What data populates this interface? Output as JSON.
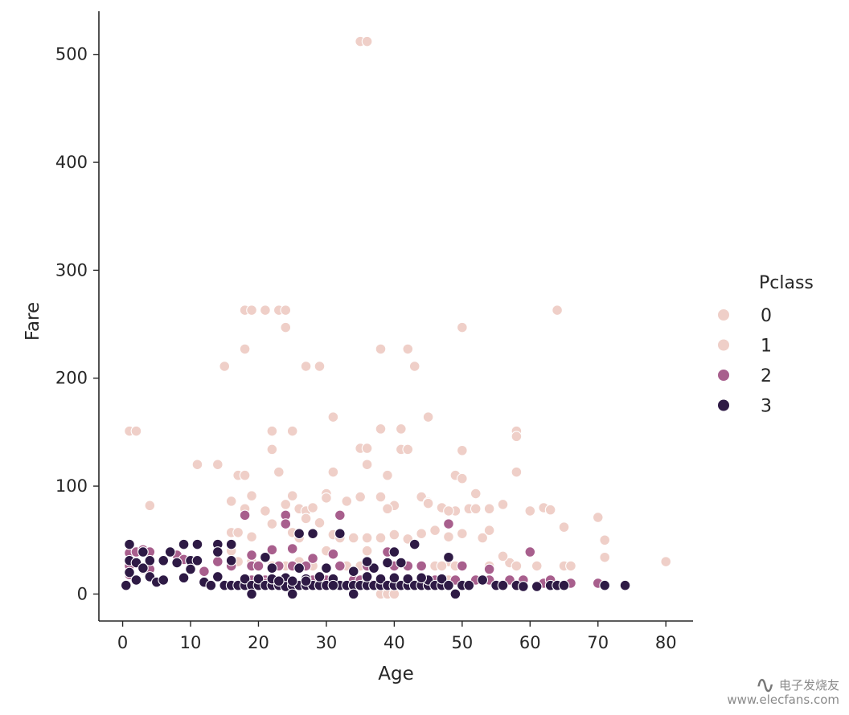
{
  "chart_data": {
    "type": "scatter",
    "xlabel": "Age",
    "ylabel": "Fare",
    "xlim": [
      -3.5,
      84
    ],
    "ylim": [
      -25,
      540
    ],
    "xticks": [
      0,
      10,
      20,
      30,
      40,
      50,
      60,
      70,
      80
    ],
    "yticks": [
      0,
      100,
      200,
      300,
      400,
      500
    ],
    "legend": {
      "title": "Pclass",
      "placement": "right",
      "entries": [
        {
          "label": "0",
          "color": "#efcfc8"
        },
        {
          "label": "1",
          "color": "#efcfc8"
        },
        {
          "label": "2",
          "color": "#a85f8d"
        },
        {
          "label": "3",
          "color": "#2e1a45"
        }
      ]
    },
    "series": [
      {
        "name": "1",
        "color": "#efcfc8",
        "points": [
          [
            35,
            512
          ],
          [
            36,
            512
          ],
          [
            18,
            263
          ],
          [
            19,
            263
          ],
          [
            21,
            263
          ],
          [
            23,
            263
          ],
          [
            24,
            263
          ],
          [
            64,
            263
          ],
          [
            24,
            247
          ],
          [
            50,
            247
          ],
          [
            18,
            227
          ],
          [
            38,
            227
          ],
          [
            42,
            227
          ],
          [
            15,
            211
          ],
          [
            27,
            211
          ],
          [
            29,
            211
          ],
          [
            43,
            211
          ],
          [
            31,
            164
          ],
          [
            45,
            164
          ],
          [
            1,
            151
          ],
          [
            2,
            151
          ],
          [
            22,
            151
          ],
          [
            25,
            151
          ],
          [
            58,
            151
          ],
          [
            38,
            153
          ],
          [
            41,
            153
          ],
          [
            58,
            146
          ],
          [
            35,
            135
          ],
          [
            36,
            135
          ],
          [
            41,
            134
          ],
          [
            42,
            134
          ],
          [
            50,
            133
          ],
          [
            22,
            134
          ],
          [
            36,
            120
          ],
          [
            11,
            120
          ],
          [
            14,
            120
          ],
          [
            17,
            110
          ],
          [
            18,
            110
          ],
          [
            23,
            113
          ],
          [
            31,
            113
          ],
          [
            39,
            110
          ],
          [
            58,
            113
          ],
          [
            49,
            110
          ],
          [
            50,
            107
          ],
          [
            30,
            93
          ],
          [
            25,
            91
          ],
          [
            19,
            91
          ],
          [
            35,
            90
          ],
          [
            38,
            90
          ],
          [
            40,
            82
          ],
          [
            44,
            90
          ],
          [
            45,
            85
          ],
          [
            33,
            86
          ],
          [
            4,
            82
          ],
          [
            16,
            86
          ],
          [
            52,
            93
          ],
          [
            56,
            83
          ],
          [
            62,
            80
          ],
          [
            63,
            78
          ],
          [
            60,
            77
          ],
          [
            49,
            77
          ],
          [
            47,
            80
          ],
          [
            48,
            77
          ],
          [
            51,
            79
          ],
          [
            52,
            79
          ],
          [
            54,
            79
          ],
          [
            26,
            79
          ],
          [
            27,
            77
          ],
          [
            28,
            80
          ],
          [
            30,
            89
          ],
          [
            24,
            83
          ],
          [
            21,
            77
          ],
          [
            18,
            79
          ],
          [
            22,
            65
          ],
          [
            16,
            57
          ],
          [
            17,
            57
          ],
          [
            25,
            57
          ],
          [
            27,
            70
          ],
          [
            29,
            66
          ],
          [
            31,
            55
          ],
          [
            32,
            52
          ],
          [
            34,
            52
          ],
          [
            36,
            52
          ],
          [
            38,
            52
          ],
          [
            40,
            55
          ],
          [
            42,
            51
          ],
          [
            44,
            56
          ],
          [
            46,
            59
          ],
          [
            48,
            53
          ],
          [
            50,
            56
          ],
          [
            53,
            52
          ],
          [
            54,
            59
          ],
          [
            57,
            29
          ],
          [
            58,
            26
          ],
          [
            61,
            26
          ],
          [
            65,
            62
          ],
          [
            65,
            26
          ],
          [
            66,
            26
          ],
          [
            70,
            71
          ],
          [
            71,
            50
          ],
          [
            71,
            34
          ],
          [
            80,
            30
          ],
          [
            39,
            79
          ],
          [
            45,
            84
          ],
          [
            56,
            35
          ],
          [
            54,
            26
          ],
          [
            48,
            30
          ],
          [
            46,
            26
          ],
          [
            42,
            26
          ],
          [
            33,
            26
          ],
          [
            28,
            26
          ],
          [
            35,
            26
          ],
          [
            24,
            26
          ],
          [
            22,
            26
          ],
          [
            36,
            40
          ],
          [
            30,
            40
          ],
          [
            26,
            30
          ],
          [
            49,
            26
          ],
          [
            47,
            26
          ],
          [
            19,
            30
          ],
          [
            17,
            30
          ],
          [
            19,
            53
          ],
          [
            26,
            52
          ],
          [
            38,
            0
          ],
          [
            39,
            0
          ],
          [
            40,
            0
          ],
          [
            16,
            40
          ],
          [
            48,
            13
          ]
        ]
      },
      {
        "name": "2",
        "color": "#a85f8d",
        "points": [
          [
            1,
            38
          ],
          [
            1,
            26
          ],
          [
            1,
            18
          ],
          [
            2,
            39
          ],
          [
            3,
            23
          ],
          [
            3,
            41
          ],
          [
            4,
            39
          ],
          [
            4,
            23
          ],
          [
            8,
            36
          ],
          [
            9,
            32
          ],
          [
            12,
            21
          ],
          [
            14,
            30
          ],
          [
            16,
            26
          ],
          [
            19,
            26
          ],
          [
            19,
            36
          ],
          [
            19,
            13
          ],
          [
            20,
            13
          ],
          [
            21,
            13
          ],
          [
            22,
            41
          ],
          [
            23,
            26
          ],
          [
            24,
            73
          ],
          [
            24,
            65
          ],
          [
            24,
            13
          ],
          [
            25,
            42
          ],
          [
            25,
            26
          ],
          [
            27,
            26
          ],
          [
            28,
            33
          ],
          [
            28,
            13
          ],
          [
            30,
            13
          ],
          [
            31,
            37
          ],
          [
            32,
            73
          ],
          [
            32,
            26
          ],
          [
            34,
            13
          ],
          [
            35,
            13
          ],
          [
            36,
            26
          ],
          [
            38,
            13
          ],
          [
            39,
            39
          ],
          [
            40,
            26
          ],
          [
            42,
            26
          ],
          [
            44,
            26
          ],
          [
            44,
            13
          ],
          [
            46,
            13
          ],
          [
            48,
            65
          ],
          [
            49,
            13
          ],
          [
            50,
            26
          ],
          [
            52,
            13
          ],
          [
            54,
            13
          ],
          [
            54,
            23
          ],
          [
            57,
            13
          ],
          [
            59,
            13
          ],
          [
            60,
            39
          ],
          [
            62,
            10
          ],
          [
            63,
            13
          ],
          [
            66,
            10
          ],
          [
            70,
            10
          ],
          [
            36,
            13
          ],
          [
            27,
            10
          ],
          [
            23,
            10
          ],
          [
            21,
            10
          ],
          [
            18,
            73
          ],
          [
            20,
            26
          ]
        ]
      },
      {
        "name": "3",
        "color": "#2e1a45",
        "points": [
          [
            0.5,
            8
          ],
          [
            1,
            46
          ],
          [
            1,
            31
          ],
          [
            1,
            20
          ],
          [
            2,
            29
          ],
          [
            2,
            13
          ],
          [
            3,
            24
          ],
          [
            3,
            39
          ],
          [
            4,
            31
          ],
          [
            4,
            16
          ],
          [
            5,
            11
          ],
          [
            6,
            13
          ],
          [
            6,
            31
          ],
          [
            7,
            39
          ],
          [
            8,
            29
          ],
          [
            9,
            46
          ],
          [
            9,
            15
          ],
          [
            10,
            31
          ],
          [
            10,
            23
          ],
          [
            11,
            46
          ],
          [
            11,
            31
          ],
          [
            12,
            11
          ],
          [
            13,
            8
          ],
          [
            14,
            46
          ],
          [
            14,
            39
          ],
          [
            14,
            16
          ],
          [
            15,
            8
          ],
          [
            16,
            8
          ],
          [
            16,
            46
          ],
          [
            16,
            31
          ],
          [
            17,
            8
          ],
          [
            18,
            8
          ],
          [
            18,
            14
          ],
          [
            19,
            8
          ],
          [
            19,
            0
          ],
          [
            20,
            8
          ],
          [
            20,
            14
          ],
          [
            21,
            8
          ],
          [
            21,
            34
          ],
          [
            22,
            8
          ],
          [
            22,
            14
          ],
          [
            22,
            24
          ],
          [
            23,
            8
          ],
          [
            24,
            8
          ],
          [
            24,
            15
          ],
          [
            24,
            7
          ],
          [
            25,
            8
          ],
          [
            25,
            0
          ],
          [
            26,
            8
          ],
          [
            26,
            56
          ],
          [
            26,
            24
          ],
          [
            27,
            8
          ],
          [
            27,
            14
          ],
          [
            28,
            8
          ],
          [
            28,
            56
          ],
          [
            29,
            8
          ],
          [
            29,
            16
          ],
          [
            30,
            8
          ],
          [
            30,
            24
          ],
          [
            31,
            8
          ],
          [
            31,
            14
          ],
          [
            32,
            8
          ],
          [
            32,
            56
          ],
          [
            33,
            8
          ],
          [
            34,
            8
          ],
          [
            34,
            21
          ],
          [
            35,
            8
          ],
          [
            36,
            8
          ],
          [
            36,
            16
          ],
          [
            37,
            8
          ],
          [
            37,
            24
          ],
          [
            38,
            8
          ],
          [
            38,
            14
          ],
          [
            39,
            8
          ],
          [
            39,
            29
          ],
          [
            40,
            8
          ],
          [
            40,
            15
          ],
          [
            40,
            39
          ],
          [
            41,
            8
          ],
          [
            41,
            29
          ],
          [
            42,
            8
          ],
          [
            42,
            14
          ],
          [
            43,
            8
          ],
          [
            43,
            46
          ],
          [
            44,
            8
          ],
          [
            45,
            8
          ],
          [
            45,
            13
          ],
          [
            46,
            8
          ],
          [
            47,
            8
          ],
          [
            47,
            14
          ],
          [
            48,
            8
          ],
          [
            48,
            34
          ],
          [
            49,
            0
          ],
          [
            50,
            8
          ],
          [
            51,
            8
          ],
          [
            53,
            13
          ],
          [
            55,
            8
          ],
          [
            56,
            8
          ],
          [
            58,
            8
          ],
          [
            59,
            7
          ],
          [
            61,
            7
          ],
          [
            63,
            8
          ],
          [
            64,
            8
          ],
          [
            65,
            8
          ],
          [
            71,
            8
          ],
          [
            74,
            8
          ],
          [
            34,
            0
          ],
          [
            31,
            8
          ],
          [
            27,
            12
          ],
          [
            23,
            12
          ],
          [
            44,
            15
          ],
          [
            36,
            30
          ],
          [
            25,
            12
          ]
        ]
      }
    ]
  },
  "watermark": {
    "brand": "电子发烧友",
    "url": "www.elecfans.com"
  }
}
